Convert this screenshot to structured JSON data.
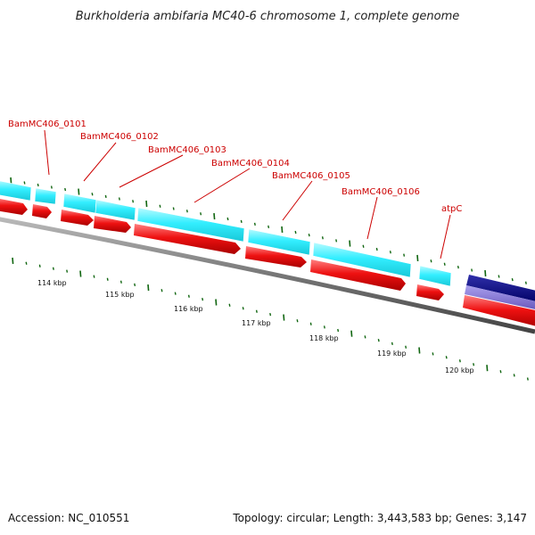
{
  "title": "Burkholderia ambifaria MC40-6 chromosome 1, complete genome",
  "accession_text": "Accession: NC_010551",
  "summary_text": "Topology: circular; Length: 3,443,583 bp; Genes: 3,147",
  "colors": {
    "cds_top": "#33eeff",
    "cds_bottom": "#ee1111",
    "backbone": "#777777",
    "tick": "#116611",
    "label": "#cc0000",
    "rna_top": "#000088",
    "rna_bottom": "#7766cc"
  },
  "gene_labels": [
    "BamMC406_0101",
    "BamMC406_0102",
    "BamMC406_0103",
    "BamMC406_0104",
    "BamMC406_0105",
    "BamMC406_0106",
    "atpC"
  ],
  "kbp_labels": [
    "114 kbp",
    "115 kbp",
    "116 kbp",
    "117 kbp",
    "118 kbp",
    "119 kbp",
    "120 kbp"
  ]
}
